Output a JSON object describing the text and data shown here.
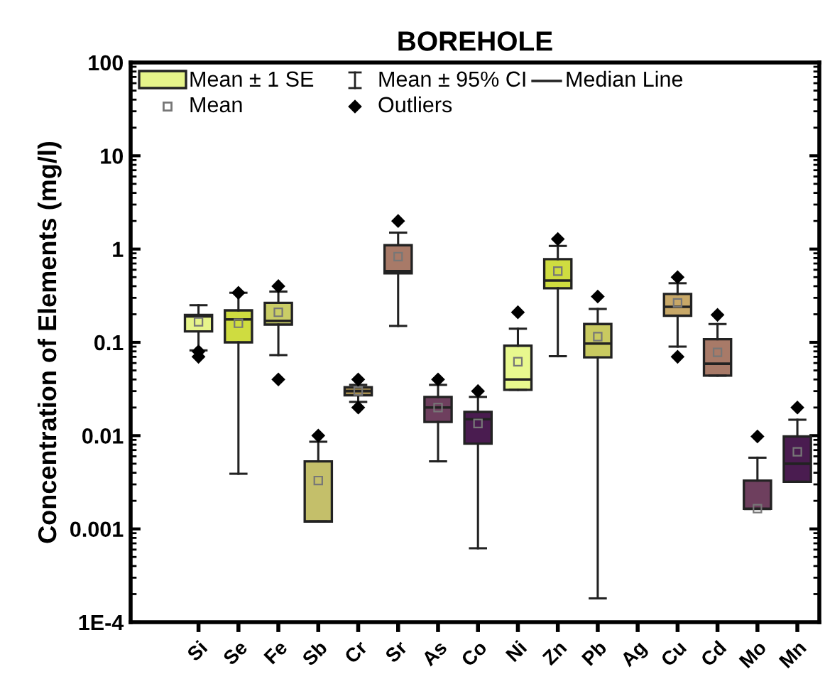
{
  "chart_data": {
    "type": "box",
    "title": "BOREHOLE",
    "ylabel": "Concentration of Elements (mg/l)",
    "categories": [
      "Si",
      "Se",
      "Fe",
      "Sb",
      "Cr",
      "Sr",
      "As",
      "Co",
      "Ni",
      "Zn",
      "Pb",
      "Ag",
      "Cu",
      "Cd",
      "Mo",
      "Mn"
    ],
    "colors": [
      "#e6f48a",
      "#cfdc40",
      "#cacd66",
      "#c4bf6a",
      "#a88f50",
      "#a87a68",
      "#6e3f5e",
      "#4a1c50",
      "#e8f88e",
      "#cfdc40",
      "#c9ca60",
      null,
      "#c8a868",
      "#a87a68",
      "#6e3f5e",
      "#4a1c50"
    ],
    "boxes": [
      {
        "low": 0.082,
        "q1": 0.131,
        "median": 0.19,
        "q3": 0.197,
        "high": 0.25,
        "mean": 0.166,
        "outliers": [
          0.08,
          0.07
        ]
      },
      {
        "low": 0.0039,
        "q1": 0.1,
        "median": 0.176,
        "q3": 0.22,
        "high": 0.34,
        "mean": 0.16,
        "outliers": [
          0.34
        ]
      },
      {
        "low": 0.073,
        "q1": 0.155,
        "median": 0.17,
        "q3": 0.265,
        "high": 0.35,
        "mean": 0.21,
        "outliers": [
          0.4,
          0.04
        ]
      },
      {
        "low": 0.0012,
        "q1": 0.0012,
        "median": 0.0012,
        "q3": 0.0053,
        "high": 0.0086,
        "mean": 0.0033,
        "outliers": [
          0.01
        ]
      },
      {
        "low": 0.023,
        "q1": 0.027,
        "median": 0.03,
        "q3": 0.033,
        "high": 0.035,
        "mean": 0.03,
        "outliers": [
          0.04,
          0.02
        ]
      },
      {
        "low": 0.15,
        "q1": 0.55,
        "median": 0.58,
        "q3": 1.1,
        "high": 1.5,
        "mean": 0.83,
        "outliers": [
          2
        ]
      },
      {
        "low": 0.0053,
        "q1": 0.014,
        "median": 0.02,
        "q3": 0.026,
        "high": 0.035,
        "mean": 0.02,
        "outliers": [
          0.04
        ]
      },
      {
        "low": 0.00062,
        "q1": 0.0082,
        "median": 0.015,
        "q3": 0.018,
        "high": 0.026,
        "mean": 0.0135,
        "outliers": [
          0.03
        ]
      },
      {
        "low": 0.031,
        "q1": 0.031,
        "median": 0.04,
        "q3": 0.092,
        "high": 0.14,
        "mean": 0.062,
        "outliers": [
          0.21
        ]
      },
      {
        "low": 0.071,
        "q1": 0.38,
        "median": 0.46,
        "q3": 0.78,
        "high": 1.08,
        "mean": 0.58,
        "outliers": [
          1.28
        ]
      },
      {
        "low": 0.00018,
        "q1": 0.069,
        "median": 0.097,
        "q3": 0.157,
        "high": 0.228,
        "mean": 0.115,
        "outliers": [
          0.31
        ]
      },
      null,
      {
        "low": 0.09,
        "q1": 0.193,
        "median": 0.24,
        "q3": 0.33,
        "high": 0.43,
        "mean": 0.265,
        "outliers": [
          0.5,
          0.07
        ]
      },
      {
        "low": 0.044,
        "q1": 0.044,
        "median": 0.059,
        "q3": 0.108,
        "high": 0.157,
        "mean": 0.078,
        "outliers": [
          0.197
        ]
      },
      {
        "low": 0.00164,
        "q1": 0.00164,
        "median": 0.00164,
        "q3": 0.0033,
        "high": 0.0058,
        "mean": 0.00165,
        "outliers": [
          0.0098
        ]
      },
      {
        "low": 0.0032,
        "q1": 0.0032,
        "median": 0.005,
        "q3": 0.0098,
        "high": 0.0148,
        "mean": 0.0067,
        "outliers": [
          0.02
        ]
      }
    ],
    "log": "y",
    "ylim": [
      0.0001,
      100
    ],
    "yticks": [
      {
        "value": 0.0001,
        "label": "1E-4"
      },
      0.001,
      0.01,
      0.1,
      1,
      10,
      100
    ],
    "annotations": [
      "Mean ± 1 SE",
      "Mean ± 95% CI",
      "Median Line",
      "Mean",
      "Outliers"
    ],
    "grid": false
  }
}
